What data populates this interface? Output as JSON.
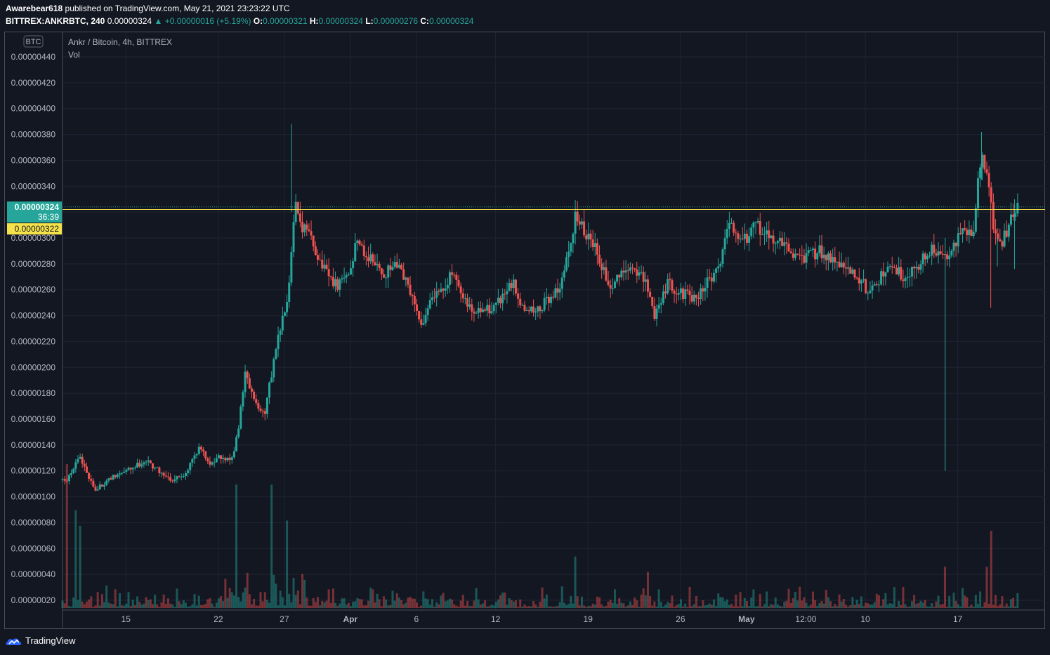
{
  "header": {
    "publisher": "Awarebear618",
    "published_text": "published on TradingView.com, May 21, 2021 23:23:22 UTC",
    "symbol": "BITTREX:ANKRBTC, 240",
    "last": "0.00000324",
    "change": "+0.00000016 (+5.19%)",
    "o_label": "O:",
    "o": "0.00000321",
    "h_label": "H:",
    "h": "0.00000324",
    "l_label": "L:",
    "l": "0.00000276",
    "c_label": "C:",
    "c": "0.00000324"
  },
  "legend": {
    "title": "Ankr / Bitcoin, 4h, BITTREX",
    "vol": "Vol"
  },
  "price_scale": {
    "currency": "BTC"
  },
  "price_tag": {
    "value": "0.00000324",
    "countdown": "36:39"
  },
  "line_tag": {
    "value": "0.00000322"
  },
  "footer": {
    "brand": "TradingView"
  },
  "colors": {
    "background": "#131722",
    "grid": "#1f2433",
    "up": "#26a69a",
    "down": "#ef5350",
    "hline": "#f5e24a",
    "text": "#b2b5be"
  },
  "chart_data": {
    "type": "candlestick",
    "title": "Ankr / Bitcoin, 4h, BITTREX",
    "ylim": [
      9e-08,
      4.5e-06
    ],
    "yticks": [
      "0.00000440",
      "0.00000420",
      "0.00000400",
      "0.00000380",
      "0.00000360",
      "0.00000340",
      "0.00000320",
      "0.00000300",
      "0.00000280",
      "0.00000260",
      "0.00000240",
      "0.00000220",
      "0.00000200",
      "0.00000180",
      "0.00000160",
      "0.00000140",
      "0.00000120",
      "0.00000100",
      "0.00000080",
      "0.00000060",
      "0.00000040",
      "0.00000020"
    ],
    "xticks": [
      {
        "label": "15",
        "day": 15
      },
      {
        "label": "22",
        "day": 22
      },
      {
        "label": "27",
        "day": 27
      },
      {
        "label": "Apr",
        "day": 32
      },
      {
        "label": "6",
        "day": 37
      },
      {
        "label": "12",
        "day": 43
      },
      {
        "label": "19",
        "day": 50
      },
      {
        "label": "26",
        "day": 57
      },
      {
        "label": "May",
        "day": 62
      },
      {
        "label": "12:00",
        "day": 66.5
      },
      {
        "label": "10",
        "day": 71
      },
      {
        "label": "17",
        "day": 78
      }
    ],
    "horizontal_line": 3.22e-06,
    "last_close": 3.24e-06,
    "anchors": [
      [
        10.5,
        112
      ],
      [
        11.5,
        130
      ],
      [
        12.7,
        105
      ],
      [
        13.5,
        112
      ],
      [
        15,
        120
      ],
      [
        16.5,
        128
      ],
      [
        17.5,
        120
      ],
      [
        18.5,
        113
      ],
      [
        19.5,
        118
      ],
      [
        20.5,
        138
      ],
      [
        21.5,
        125
      ],
      [
        22,
        132
      ],
      [
        23,
        128
      ],
      [
        23.5,
        150
      ],
      [
        24,
        195
      ],
      [
        25,
        168
      ],
      [
        25.5,
        165
      ],
      [
        26.5,
        220
      ],
      [
        27.3,
        260
      ],
      [
        27.8,
        330
      ],
      [
        28.3,
        310
      ],
      [
        29,
        300
      ],
      [
        30,
        275
      ],
      [
        31,
        262
      ],
      [
        32,
        275
      ],
      [
        32.5,
        300
      ],
      [
        33.5,
        283
      ],
      [
        34.5,
        272
      ],
      [
        35.5,
        278
      ],
      [
        36.5,
        260
      ],
      [
        37.3,
        230
      ],
      [
        38.3,
        258
      ],
      [
        39,
        262
      ],
      [
        39.7,
        272
      ],
      [
        40.6,
        250
      ],
      [
        41.5,
        242
      ],
      [
        42.5,
        245
      ],
      [
        43.5,
        252
      ],
      [
        44.3,
        265
      ],
      [
        45,
        248
      ],
      [
        46,
        243
      ],
      [
        47,
        252
      ],
      [
        48,
        265
      ],
      [
        48.7,
        300
      ],
      [
        49.1,
        318
      ],
      [
        49.7,
        305
      ],
      [
        50.3,
        300
      ],
      [
        51,
        280
      ],
      [
        51.6,
        262
      ],
      [
        52.5,
        270
      ],
      [
        53.5,
        278
      ],
      [
        54.5,
        262
      ],
      [
        55,
        240
      ],
      [
        56,
        265
      ],
      [
        57,
        258
      ],
      [
        58,
        252
      ],
      [
        59,
        265
      ],
      [
        60,
        280
      ],
      [
        60.6,
        315
      ],
      [
        61.3,
        305
      ],
      [
        62,
        300
      ],
      [
        62.8,
        310
      ],
      [
        63.6,
        300
      ],
      [
        64.5,
        298
      ],
      [
        65.5,
        288
      ],
      [
        66.5,
        285
      ],
      [
        67.5,
        290
      ],
      [
        68.5,
        285
      ],
      [
        69.5,
        275
      ],
      [
        70.5,
        270
      ],
      [
        71.2,
        258
      ],
      [
        72,
        268
      ],
      [
        73,
        278
      ],
      [
        74,
        270
      ],
      [
        75,
        280
      ],
      [
        76,
        290
      ],
      [
        77,
        285
      ],
      [
        77.8,
        298
      ],
      [
        78.5,
        305
      ],
      [
        79.2,
        302
      ],
      [
        79.5,
        350
      ],
      [
        79.9,
        360
      ],
      [
        80.4,
        340
      ],
      [
        80.8,
        300
      ],
      [
        81.3,
        295
      ],
      [
        81.9,
        310
      ],
      [
        82.3,
        320
      ],
      [
        82.6,
        324
      ]
    ],
    "spikes": [
      {
        "day": 27.55,
        "high": 388,
        "low": 320
      },
      {
        "day": 77.05,
        "high": 300,
        "low": 120
      },
      {
        "day": 79.8,
        "high": 382,
        "low": 345
      },
      {
        "day": 80.5,
        "high": 330,
        "low": 246
      },
      {
        "day": 81.0,
        "high": 300,
        "low": 278
      },
      {
        "day": 82.3,
        "high": 330,
        "low": 276
      }
    ],
    "volume_scale_max": 1.2e-06,
    "volume_spikes": [
      {
        "day": 10.6,
        "v": 140
      },
      {
        "day": 11.2,
        "v": 95
      },
      {
        "day": 11.5,
        "v": 80
      },
      {
        "day": 23.4,
        "v": 120
      },
      {
        "day": 26.1,
        "v": 120
      },
      {
        "day": 27.2,
        "v": 85
      },
      {
        "day": 49.1,
        "v": 50
      },
      {
        "day": 54.5,
        "v": 35
      },
      {
        "day": 77.05,
        "v": 40
      },
      {
        "day": 80.5,
        "v": 75
      },
      {
        "day": 80.2,
        "v": 40
      }
    ],
    "start_day": 10.2,
    "end_day": 82.7,
    "units": "1e-8 BTC for anchors/spikes/volumes"
  }
}
